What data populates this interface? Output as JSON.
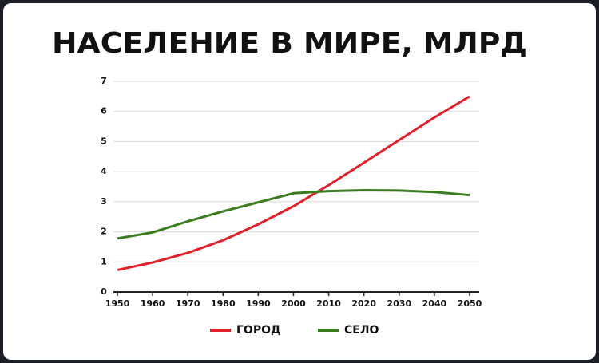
{
  "chart_data": {
    "type": "line",
    "title": "НАСЕЛЕНИЕ В МИРЕ, МЛРД",
    "x": [
      1950,
      1960,
      1970,
      1980,
      1990,
      2000,
      2010,
      2020,
      2030,
      2040,
      2050
    ],
    "series": [
      {
        "name": "ГОРОД",
        "color": "#e3202a",
        "values": [
          0.73,
          0.98,
          1.3,
          1.72,
          2.25,
          2.85,
          3.55,
          4.3,
          5.05,
          5.8,
          6.5
        ]
      },
      {
        "name": "СЕЛО",
        "color": "#3a7d1e",
        "values": [
          1.78,
          1.98,
          2.35,
          2.68,
          2.98,
          3.28,
          3.35,
          3.38,
          3.37,
          3.32,
          3.22
        ]
      }
    ],
    "xlim": [
      1950,
      2050
    ],
    "xticks": [
      1950,
      1960,
      1970,
      1980,
      1990,
      2000,
      2010,
      2020,
      2030,
      2040,
      2050
    ],
    "ylim": [
      0,
      7
    ],
    "yticks": [
      0,
      1,
      2,
      3,
      4,
      5,
      6,
      7
    ],
    "grid": true
  }
}
